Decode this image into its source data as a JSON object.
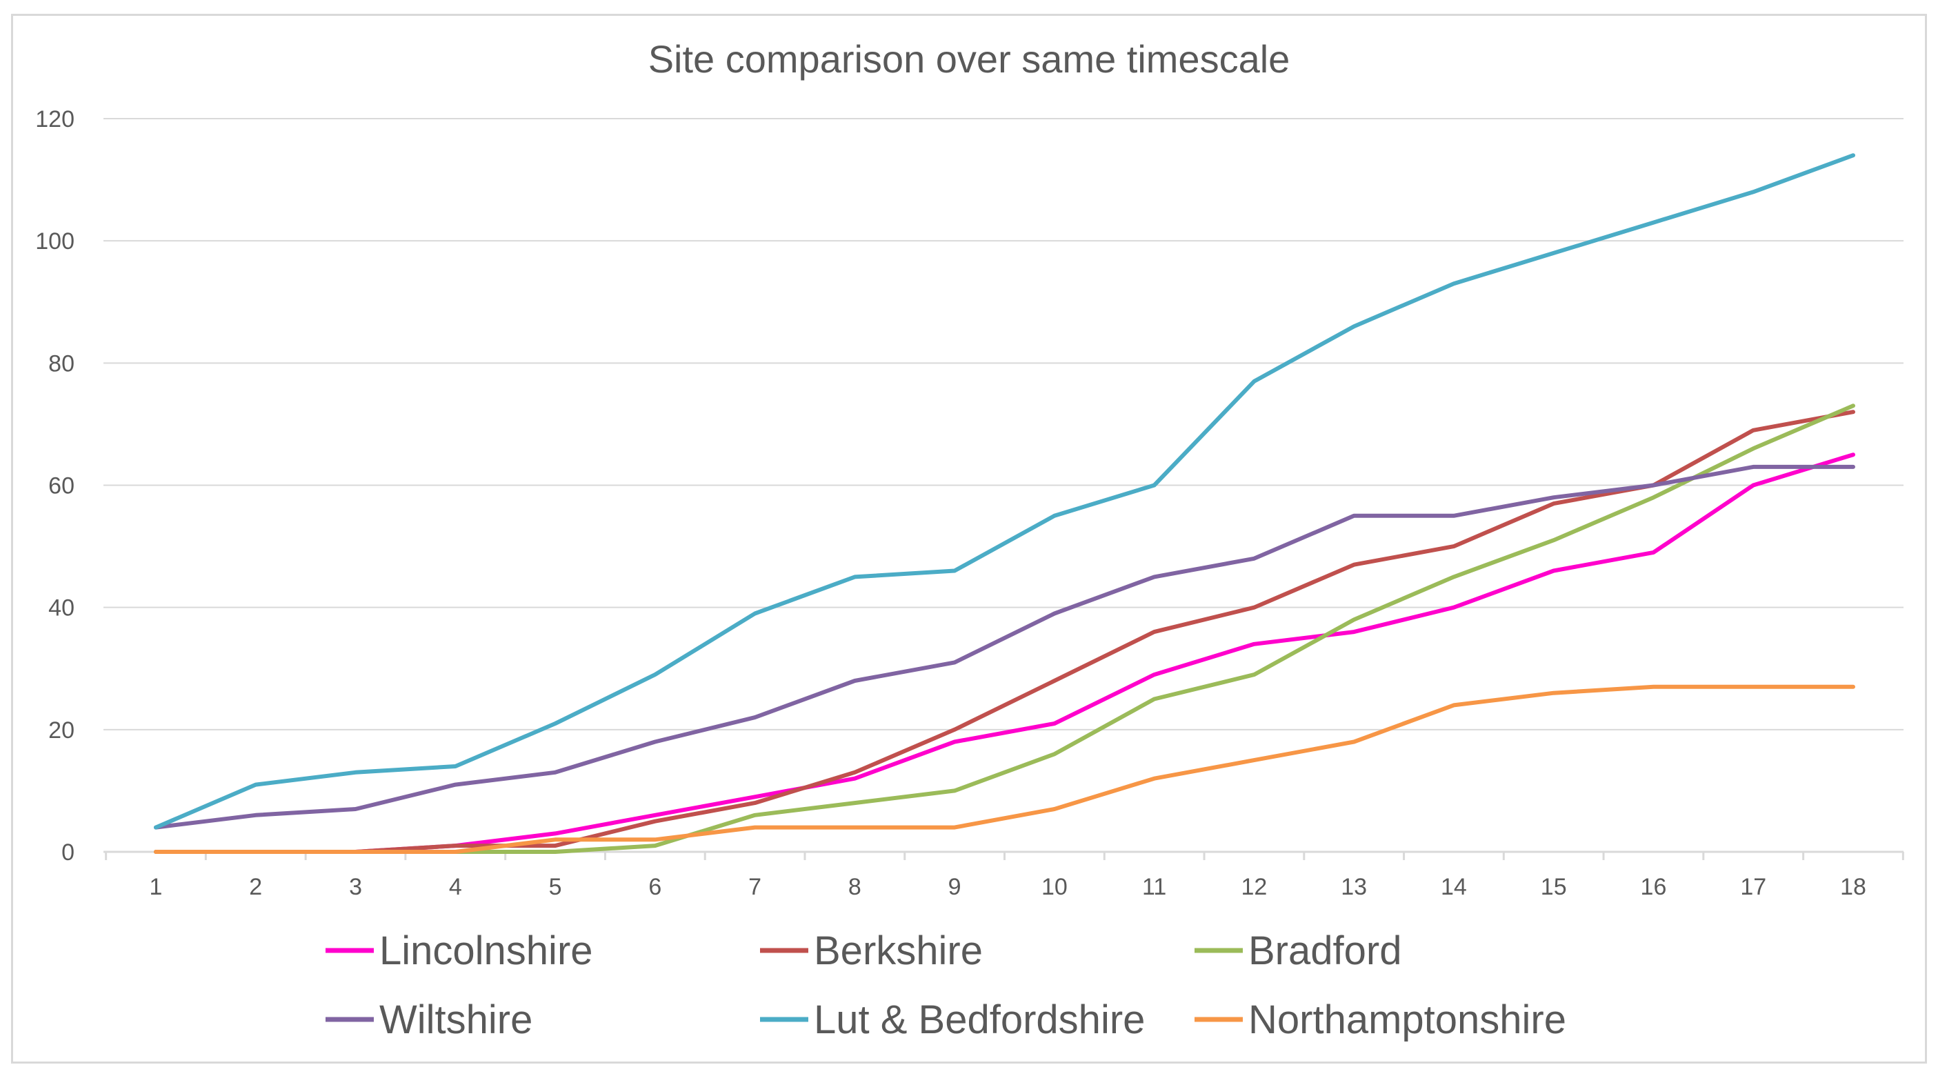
{
  "chart_data": {
    "type": "line",
    "title": "Site comparison over same timescale",
    "xlabel": "",
    "ylabel": "",
    "categories": [
      "1",
      "2",
      "3",
      "4",
      "5",
      "6",
      "7",
      "8",
      "9",
      "10",
      "11",
      "12",
      "13",
      "14",
      "15",
      "16",
      "17",
      "18"
    ],
    "ylim": [
      0,
      120
    ],
    "yticks": [
      0,
      20,
      40,
      60,
      80,
      100,
      120
    ],
    "grid": true,
    "legend_position": "bottom",
    "series": [
      {
        "name": "Lincolnshire",
        "color": "#ff00cc",
        "values": [
          0,
          0,
          0,
          1,
          3,
          6,
          9,
          12,
          18,
          21,
          29,
          34,
          36,
          40,
          46,
          49,
          60,
          65
        ]
      },
      {
        "name": "Berkshire",
        "color": "#c0504d",
        "values": [
          0,
          0,
          0,
          1,
          1,
          5,
          8,
          13,
          20,
          28,
          36,
          40,
          47,
          50,
          57,
          60,
          69,
          72
        ]
      },
      {
        "name": "Bradford",
        "color": "#9bbb59",
        "values": [
          0,
          0,
          0,
          0,
          0,
          1,
          6,
          8,
          10,
          16,
          25,
          29,
          38,
          45,
          51,
          58,
          66,
          73
        ]
      },
      {
        "name": "Wiltshire",
        "color": "#8064a2",
        "values": [
          4,
          6,
          7,
          11,
          13,
          18,
          22,
          28,
          31,
          39,
          45,
          48,
          55,
          55,
          58,
          60,
          63,
          63
        ]
      },
      {
        "name": "Lut & Bedfordshire",
        "color": "#4bacc6",
        "values": [
          4,
          11,
          13,
          14,
          21,
          29,
          39,
          45,
          46,
          55,
          60,
          77,
          86,
          93,
          98,
          103,
          108,
          114
        ]
      },
      {
        "name": "Northamptonshire",
        "color": "#f79646",
        "values": [
          0,
          0,
          0,
          0,
          2,
          2,
          4,
          4,
          4,
          7,
          12,
          15,
          18,
          24,
          26,
          27,
          27,
          27
        ]
      }
    ],
    "axis_color": "#d9d9d9",
    "gridline_color": "#d9d9d9"
  }
}
